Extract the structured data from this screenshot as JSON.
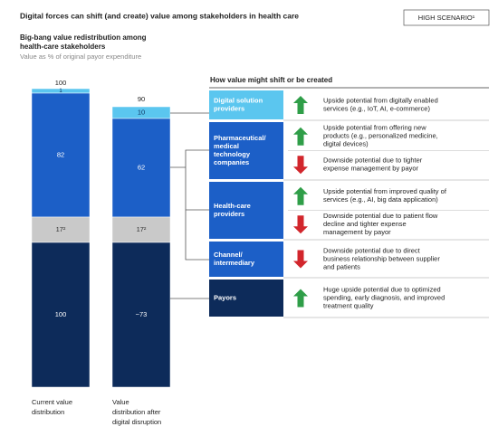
{
  "header": {
    "title": "Digital forces can shift (and create) value among stakeholders in health care",
    "badge": "HIGH SCENARIO¹",
    "subtitle": [
      "Big-bang value redistribution among",
      "health-care stakeholders"
    ],
    "note": "Value as % of original payor expenditure"
  },
  "columns": [
    {
      "label": [
        "Current value",
        "distribution"
      ],
      "total": "100",
      "segments": [
        "1",
        "82",
        "17²",
        "100"
      ]
    },
    {
      "label": [
        "Value",
        "distribution after",
        "digital disruption"
      ],
      "total": "90",
      "segments": [
        "10",
        "62",
        "17²",
        "~73"
      ]
    }
  ],
  "panel": {
    "heading": "How value might shift or be created",
    "rows": [
      {
        "name": [
          "Digital solution",
          "providers"
        ],
        "items": [
          {
            "direction": "up",
            "text": [
              "Upside potential from digitally enabled",
              "services (e.g., IoT, AI, e-commerce)"
            ]
          }
        ]
      },
      {
        "name": [
          "Pharmaceutical/",
          "medical",
          "technology",
          "companies"
        ],
        "items": [
          {
            "direction": "up",
            "text": [
              "Upside potential from offering new",
              "products (e.g., personalized medicine,",
              "digital devices)"
            ]
          },
          {
            "direction": "down",
            "text": [
              "Downside potential due to tighter",
              "expense management by payor"
            ]
          }
        ]
      },
      {
        "name": [
          "Health-care",
          "providers"
        ],
        "items": [
          {
            "direction": "up",
            "text": [
              "Upside potential from improved quality of",
              "services (e.g., AI, big data application)"
            ]
          },
          {
            "direction": "down",
            "text": [
              "Downside potential due to patient flow",
              "decline and tighter expense",
              "management by payor"
            ]
          }
        ]
      },
      {
        "name": [
          "Channel/",
          "intermediary"
        ],
        "items": [
          {
            "direction": "down",
            "text": [
              "Downside potential due to direct",
              "business relationship between supplier",
              "and patients"
            ]
          }
        ]
      },
      {
        "name": [
          "Payors"
        ],
        "items": [
          {
            "direction": "up",
            "text": [
              "Huge upside potential due to optimized",
              "spending, early diagnosis, and improved",
              "treatment quality"
            ]
          }
        ]
      }
    ]
  }
}
